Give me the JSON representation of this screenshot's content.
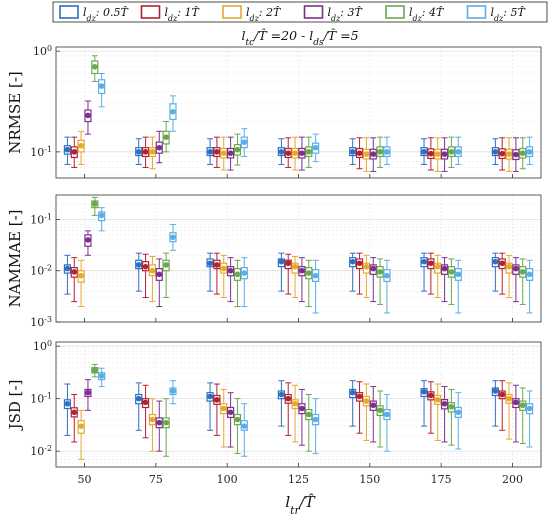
{
  "chart_data": {
    "type": "box",
    "title": "l_tc/T̂ =20 - l_ds/T̂ =5",
    "xlabel": "l_tr/T̂",
    "x_categories": [
      50,
      75,
      100,
      125,
      150,
      175,
      200
    ],
    "legend": {
      "placement": "top",
      "entries": [
        "l_dz: 0.5T̂",
        "l_dz: 1T̂",
        "l_dz: 2T̂",
        "l_dz: 3T̂",
        "l_dz: 4T̂",
        "l_dz: 5T̂"
      ]
    },
    "colors": [
      "#2f6fc2",
      "#b22234",
      "#e7a82c",
      "#7e2f8e",
      "#6aa84f",
      "#5aaee8"
    ],
    "panels": [
      {
        "name": "NRMSE",
        "ylabel": "NRMSE [-]",
        "yscale": "log",
        "ylim": [
          0.055,
          1.1
        ],
        "yticks": [
          0.1,
          1
        ],
        "yticklabels": [
          "10^-1",
          "10^0"
        ],
        "grid": true,
        "series": [
          {
            "name": "0.5T̂",
            "median": [
              0.105,
              0.1,
              0.1,
              0.1,
              0.1,
              0.1,
              0.1
            ],
            "q1": [
              0.095,
              0.092,
              0.092,
              0.092,
              0.092,
              0.092,
              0.092
            ],
            "q3": [
              0.115,
              0.11,
              0.11,
              0.11,
              0.11,
              0.11,
              0.11
            ],
            "wmin": [
              0.075,
              0.075,
              0.075,
              0.075,
              0.075,
              0.075,
              0.075
            ],
            "wmax": [
              0.14,
              0.135,
              0.135,
              0.135,
              0.135,
              0.135,
              0.135
            ]
          },
          {
            "name": "1T̂",
            "median": [
              0.1,
              0.1,
              0.1,
              0.097,
              0.097,
              0.096,
              0.096
            ],
            "q1": [
              0.088,
              0.09,
              0.09,
              0.088,
              0.088,
              0.086,
              0.086
            ],
            "q3": [
              0.112,
              0.11,
              0.11,
              0.108,
              0.108,
              0.107,
              0.107
            ],
            "wmin": [
              0.07,
              0.07,
              0.07,
              0.07,
              0.068,
              0.066,
              0.066
            ],
            "wmax": [
              0.14,
              0.14,
              0.14,
              0.138,
              0.138,
              0.138,
              0.138
            ]
          },
          {
            "name": "2T̂",
            "median": [
              0.115,
              0.1,
              0.097,
              0.097,
              0.095,
              0.095,
              0.095
            ],
            "q1": [
              0.1,
              0.09,
              0.087,
              0.087,
              0.085,
              0.085,
              0.085
            ],
            "q3": [
              0.13,
              0.11,
              0.108,
              0.108,
              0.106,
              0.106,
              0.106
            ],
            "wmin": [
              0.075,
              0.068,
              0.066,
              0.066,
              0.064,
              0.064,
              0.064
            ],
            "wmax": [
              0.16,
              0.14,
              0.14,
              0.14,
              0.138,
              0.138,
              0.138
            ]
          },
          {
            "name": "3T̂",
            "median": [
              0.23,
              0.11,
              0.097,
              0.097,
              0.095,
              0.095,
              0.094
            ],
            "q1": [
              0.2,
              0.097,
              0.087,
              0.087,
              0.085,
              0.085,
              0.084
            ],
            "q3": [
              0.26,
              0.125,
              0.108,
              0.108,
              0.106,
              0.106,
              0.105
            ],
            "wmin": [
              0.15,
              0.078,
              0.066,
              0.066,
              0.064,
              0.064,
              0.064
            ],
            "wmax": [
              0.32,
              0.16,
              0.14,
              0.14,
              0.138,
              0.138,
              0.138
            ]
          },
          {
            "name": "4T̂",
            "median": [
              0.7,
              0.14,
              0.105,
              0.1,
              0.1,
              0.1,
              0.097
            ],
            "q1": [
              0.6,
              0.12,
              0.093,
              0.09,
              0.09,
              0.09,
              0.087
            ],
            "q3": [
              0.8,
              0.16,
              0.118,
              0.112,
              0.112,
              0.112,
              0.108
            ],
            "wmin": [
              0.5,
              0.1,
              0.074,
              0.07,
              0.07,
              0.07,
              0.068
            ],
            "wmax": [
              0.9,
              0.2,
              0.15,
              0.14,
              0.14,
              0.14,
              0.138
            ]
          },
          {
            "name": "5T̂",
            "median": [
              0.45,
              0.25,
              0.125,
              0.11,
              0.1,
              0.1,
              0.1
            ],
            "q1": [
              0.38,
              0.21,
              0.11,
              0.097,
              0.09,
              0.09,
              0.09
            ],
            "q3": [
              0.52,
              0.3,
              0.14,
              0.122,
              0.112,
              0.112,
              0.112
            ],
            "wmin": [
              0.28,
              0.16,
              0.09,
              0.08,
              0.075,
              0.075,
              0.075
            ],
            "wmax": [
              0.6,
              0.36,
              0.17,
              0.15,
              0.14,
              0.14,
              0.14
            ]
          }
        ]
      },
      {
        "name": "NAMMAE",
        "ylabel": "NAMMAE [-]",
        "yscale": "log",
        "ylim": [
          0.001,
          0.3
        ],
        "yticks": [
          0.001,
          0.01,
          0.1
        ],
        "yticklabels": [
          "10^-3",
          "10^-2",
          "10^-1"
        ],
        "grid": true,
        "series": [
          {
            "name": "0.5T̂",
            "median": [
              0.011,
              0.013,
              0.014,
              0.015,
              0.015,
              0.015,
              0.015
            ],
            "q1": [
              0.009,
              0.011,
              0.012,
              0.012,
              0.012,
              0.012,
              0.012
            ],
            "q3": [
              0.013,
              0.016,
              0.017,
              0.017,
              0.018,
              0.018,
              0.018
            ],
            "wmin": [
              0.0035,
              0.004,
              0.004,
              0.004,
              0.004,
              0.004,
              0.004
            ],
            "wmax": [
              0.02,
              0.022,
              0.022,
              0.022,
              0.022,
              0.022,
              0.022
            ]
          },
          {
            "name": "1T̂",
            "median": [
              0.0095,
              0.012,
              0.013,
              0.014,
              0.014,
              0.014,
              0.014
            ],
            "q1": [
              0.0075,
              0.01,
              0.011,
              0.011,
              0.011,
              0.011,
              0.011
            ],
            "q3": [
              0.0115,
              0.015,
              0.016,
              0.016,
              0.017,
              0.017,
              0.017
            ],
            "wmin": [
              0.0025,
              0.003,
              0.0035,
              0.0035,
              0.0035,
              0.0035,
              0.0035
            ],
            "wmax": [
              0.018,
              0.021,
              0.022,
              0.021,
              0.022,
              0.022,
              0.022
            ]
          },
          {
            "name": "2T̂",
            "median": [
              0.008,
              0.01,
              0.011,
              0.012,
              0.012,
              0.012,
              0.012
            ],
            "q1": [
              0.006,
              0.008,
              0.009,
              0.009,
              0.009,
              0.009,
              0.009
            ],
            "q3": [
              0.01,
              0.013,
              0.014,
              0.014,
              0.014,
              0.014,
              0.014
            ],
            "wmin": [
              0.002,
              0.0025,
              0.003,
              0.003,
              0.003,
              0.003,
              0.003
            ],
            "wmax": [
              0.016,
              0.019,
              0.02,
              0.019,
              0.02,
              0.02,
              0.02
            ]
          },
          {
            "name": "3T̂",
            "median": [
              0.04,
              0.0085,
              0.01,
              0.01,
              0.011,
              0.011,
              0.011
            ],
            "q1": [
              0.03,
              0.0065,
              0.008,
              0.008,
              0.0085,
              0.0085,
              0.0085
            ],
            "q3": [
              0.05,
              0.011,
              0.012,
              0.012,
              0.013,
              0.013,
              0.013
            ],
            "wmin": [
              0.02,
              0.002,
              0.0025,
              0.0025,
              0.0025,
              0.0025,
              0.0025
            ],
            "wmax": [
              0.06,
              0.017,
              0.018,
              0.018,
              0.018,
              0.018,
              0.018
            ]
          },
          {
            "name": "4T̂",
            "median": [
              0.2,
              0.013,
              0.0085,
              0.009,
              0.0095,
              0.0095,
              0.0095
            ],
            "q1": [
              0.17,
              0.01,
              0.0065,
              0.007,
              0.0075,
              0.0075,
              0.0075
            ],
            "q3": [
              0.23,
              0.016,
              0.011,
              0.0115,
              0.012,
              0.012,
              0.012
            ],
            "wmin": [
              0.12,
              0.003,
              0.002,
              0.002,
              0.0022,
              0.0022,
              0.0022
            ],
            "wmax": [
              0.27,
              0.022,
              0.016,
              0.016,
              0.017,
              0.017,
              0.017
            ]
          },
          {
            "name": "5T̂",
            "median": [
              0.12,
              0.045,
              0.009,
              0.008,
              0.008,
              0.0085,
              0.0085
            ],
            "q1": [
              0.095,
              0.037,
              0.007,
              0.0062,
              0.0062,
              0.0065,
              0.0065
            ],
            "q3": [
              0.14,
              0.055,
              0.0115,
              0.0105,
              0.0105,
              0.011,
              0.011
            ],
            "wmin": [
              0.06,
              0.025,
              0.002,
              0.0015,
              0.0015,
              0.0015,
              0.0015
            ],
            "wmax": [
              0.17,
              0.08,
              0.018,
              0.016,
              0.016,
              0.016,
              0.016
            ]
          }
        ]
      },
      {
        "name": "JSD",
        "ylabel": "JSD [-]",
        "yscale": "log",
        "ylim": [
          0.005,
          1.2
        ],
        "yticks": [
          0.01,
          0.1,
          1
        ],
        "yticklabels": [
          "10^-2",
          "10^-1",
          "10^0"
        ],
        "grid": true,
        "series": [
          {
            "name": "0.5T̂",
            "median": [
              0.08,
              0.1,
              0.11,
              0.12,
              0.13,
              0.135,
              0.14
            ],
            "q1": [
              0.065,
              0.08,
              0.09,
              0.1,
              0.105,
              0.11,
              0.115
            ],
            "q3": [
              0.095,
              0.12,
              0.13,
              0.14,
              0.15,
              0.155,
              0.16
            ],
            "wmin": [
              0.02,
              0.025,
              0.025,
              0.03,
              0.03,
              0.03,
              0.03
            ],
            "wmax": [
              0.19,
              0.2,
              0.2,
              0.22,
              0.22,
              0.22,
              0.22
            ]
          },
          {
            "name": "1T̂",
            "median": [
              0.055,
              0.085,
              0.095,
              0.1,
              0.11,
              0.115,
              0.12
            ],
            "q1": [
              0.045,
              0.068,
              0.078,
              0.082,
              0.09,
              0.095,
              0.1
            ],
            "q3": [
              0.067,
              0.1,
              0.115,
              0.12,
              0.13,
              0.135,
              0.14
            ],
            "wmin": [
              0.015,
              0.018,
              0.02,
              0.02,
              0.022,
              0.022,
              0.025
            ],
            "wmax": [
              0.12,
              0.18,
              0.19,
              0.2,
              0.21,
              0.21,
              0.22
            ]
          },
          {
            "name": "2T̂",
            "median": [
              0.03,
              0.04,
              0.065,
              0.08,
              0.09,
              0.095,
              0.1
            ],
            "q1": [
              0.022,
              0.032,
              0.052,
              0.065,
              0.073,
              0.078,
              0.082
            ],
            "q3": [
              0.038,
              0.05,
              0.08,
              0.095,
              0.11,
              0.115,
              0.12
            ],
            "wmin": [
              0.007,
              0.01,
              0.012,
              0.015,
              0.016,
              0.016,
              0.017
            ],
            "wmax": [
              0.06,
              0.1,
              0.15,
              0.18,
              0.19,
              0.19,
              0.2
            ]
          },
          {
            "name": "3T̂",
            "median": [
              0.13,
              0.035,
              0.055,
              0.065,
              0.075,
              0.08,
              0.085
            ],
            "q1": [
              0.11,
              0.028,
              0.044,
              0.052,
              0.06,
              0.064,
              0.068
            ],
            "q3": [
              0.15,
              0.043,
              0.068,
              0.08,
              0.09,
              0.096,
              0.1
            ],
            "wmin": [
              0.06,
              0.01,
              0.012,
              0.013,
              0.015,
              0.015,
              0.015
            ],
            "wmax": [
              0.23,
              0.09,
              0.13,
              0.15,
              0.17,
              0.17,
              0.18
            ]
          },
          {
            "name": "4T̂",
            "median": [
              0.35,
              0.035,
              0.04,
              0.05,
              0.06,
              0.07,
              0.075
            ],
            "q1": [
              0.31,
              0.028,
              0.032,
              0.04,
              0.048,
              0.056,
              0.06
            ],
            "q3": [
              0.39,
              0.043,
              0.05,
              0.062,
              0.073,
              0.084,
              0.09
            ],
            "wmin": [
              0.26,
              0.008,
              0.009,
              0.01,
              0.012,
              0.013,
              0.014
            ],
            "wmax": [
              0.45,
              0.1,
              0.1,
              0.12,
              0.14,
              0.15,
              0.16
            ]
          },
          {
            "name": "5T̂",
            "median": [
              0.27,
              0.14,
              0.03,
              0.04,
              0.05,
              0.055,
              0.065
            ],
            "q1": [
              0.23,
              0.12,
              0.025,
              0.032,
              0.04,
              0.044,
              0.052
            ],
            "q3": [
              0.31,
              0.16,
              0.038,
              0.05,
              0.062,
              0.068,
              0.08
            ],
            "wmin": [
              0.17,
              0.08,
              0.008,
              0.009,
              0.01,
              0.011,
              0.012
            ],
            "wmax": [
              0.38,
              0.22,
              0.08,
              0.1,
              0.12,
              0.13,
              0.14
            ]
          }
        ]
      }
    ]
  }
}
